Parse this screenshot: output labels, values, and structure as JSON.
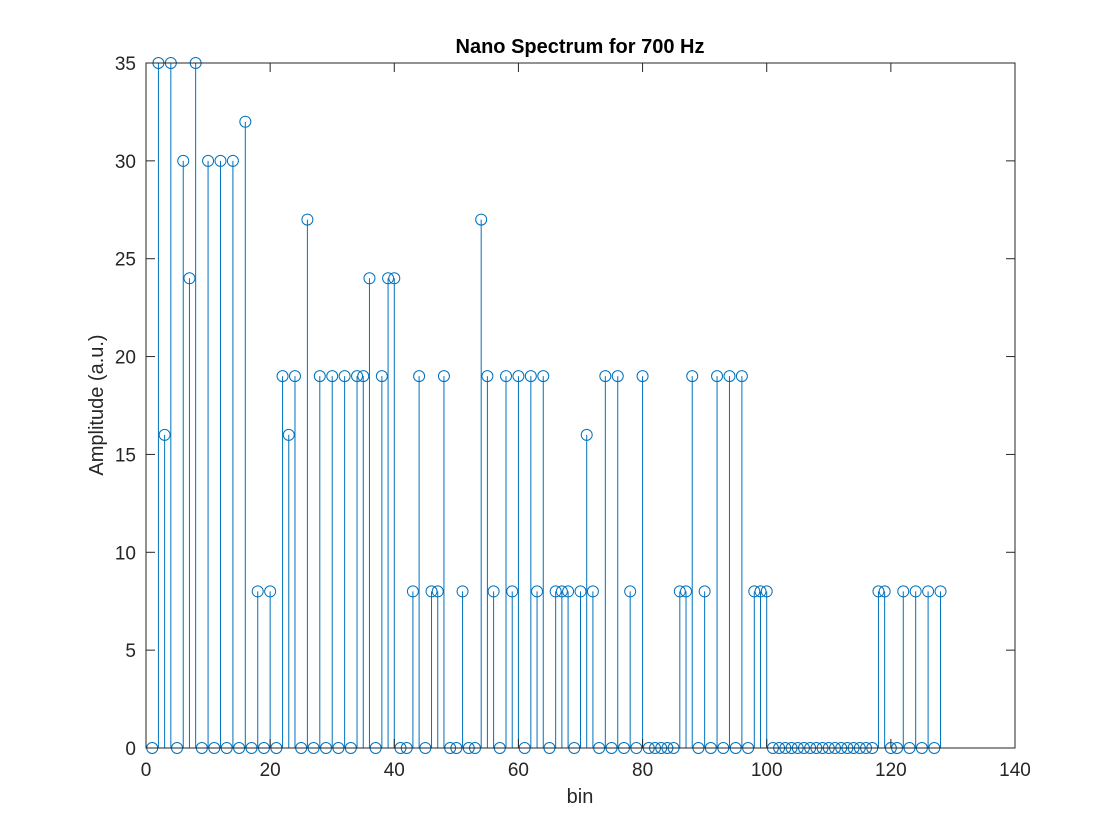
{
  "chart_data": {
    "type": "stem",
    "title": "Nano Spectrum for 700 Hz",
    "xlabel": "bin",
    "ylabel": "Amplitude (a.u.)",
    "xlim": [
      0,
      140
    ],
    "ylim": [
      0,
      35
    ],
    "xticks": [
      0,
      20,
      40,
      60,
      80,
      100,
      120,
      140
    ],
    "yticks": [
      0,
      5,
      10,
      15,
      20,
      25,
      30,
      35
    ],
    "grid": false,
    "legend": "none",
    "marker": "open-circle",
    "color": "#0072BD",
    "x_start": 1,
    "values": [
      0,
      35,
      16,
      35,
      0,
      30,
      24,
      35,
      0,
      30,
      0,
      30,
      0,
      30,
      0,
      32,
      0,
      8,
      0,
      8,
      0,
      19,
      16,
      19,
      0,
      27,
      0,
      19,
      0,
      19,
      0,
      19,
      0,
      19,
      19,
      24,
      0,
      19,
      24,
      24,
      0,
      0,
      8,
      19,
      0,
      8,
      8,
      19,
      0,
      0,
      8,
      0,
      0,
      27,
      19,
      8,
      0,
      19,
      8,
      19,
      0,
      19,
      8,
      19,
      0,
      8,
      8,
      8,
      0,
      8,
      16,
      8,
      0,
      19,
      0,
      19,
      0,
      8,
      0,
      19,
      0,
      0,
      0,
      0,
      0,
      8,
      8,
      19,
      0,
      8,
      0,
      19,
      0,
      19,
      0,
      19,
      0,
      8,
      8,
      8,
      0,
      0,
      0,
      0,
      0,
      0,
      0,
      0,
      0,
      0,
      0,
      0,
      0,
      0,
      0,
      0,
      0,
      8,
      8,
      0,
      0,
      8,
      0,
      8,
      0,
      8,
      0,
      8
    ]
  }
}
